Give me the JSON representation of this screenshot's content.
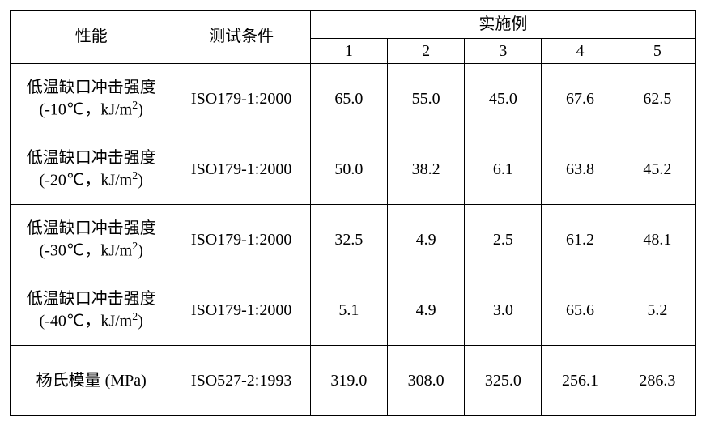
{
  "header": {
    "property": "性能",
    "condition": "测试条件",
    "group": "实施例",
    "cols": [
      "1",
      "2",
      "3",
      "4",
      "5"
    ]
  },
  "rows": [
    {
      "prop_l1": "低温缺口冲击强度",
      "prop_l2_pre": "(-10℃，kJ/m",
      "prop_l2_suf": ")",
      "cond": "ISO179-1:2000",
      "v": [
        "65.0",
        "55.0",
        "45.0",
        "67.6",
        "62.5"
      ]
    },
    {
      "prop_l1": "低温缺口冲击强度",
      "prop_l2_pre": "(-20℃，kJ/m",
      "prop_l2_suf": ")",
      "cond": "ISO179-1:2000",
      "v": [
        "50.0",
        "38.2",
        "6.1",
        "63.8",
        "45.2"
      ]
    },
    {
      "prop_l1": "低温缺口冲击强度",
      "prop_l2_pre": "(-30℃，kJ/m",
      "prop_l2_suf": ")",
      "cond": "ISO179-1:2000",
      "v": [
        "32.5",
        "4.9",
        "2.5",
        "61.2",
        "48.1"
      ]
    },
    {
      "prop_l1": "低温缺口冲击强度",
      "prop_l2_pre": "(-40℃，kJ/m",
      "prop_l2_suf": ")",
      "cond": "ISO179-1:2000",
      "v": [
        "5.1",
        "4.9",
        "3.0",
        "65.6",
        "5.2"
      ]
    },
    {
      "prop_single": "杨氏模量 (MPa)",
      "cond": "ISO527-2:1993",
      "v": [
        "319.0",
        "308.0",
        "325.0",
        "256.1",
        "286.3"
      ]
    }
  ]
}
